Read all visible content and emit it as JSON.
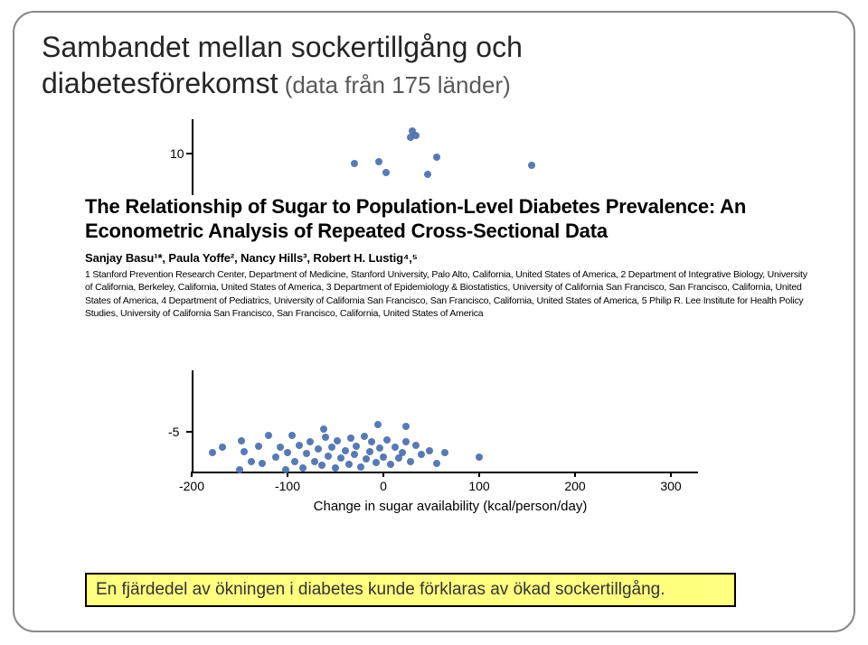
{
  "slide": {
    "title_line1": "Sambandet mellan sockertillgång och",
    "title_line2": "diabetesförekomst",
    "subtitle_suffix": " (data från 175 länder)"
  },
  "paper": {
    "title": "The Relationship of Sugar to Population-Level Diabetes Prevalence: An Econometric Analysis of Repeated Cross-Sectional Data",
    "authors": "Sanjay Basu¹*, Paula Yoffe², Nancy Hills³, Robert H. Lustig⁴,⁵",
    "affiliations": "1 Stanford Prevention Research Center, Department of Medicine, Stanford University, Palo Alto, California, United States of America, 2 Department of Integrative Biology, University of California, Berkeley, California, United States of America, 3 Department of Epidemiology & Biostatistics, University of California San Francisco, San Francisco, California, United States of America, 4 Department of Pediatrics, University of California San Francisco, San Francisco, California, United States of America, 5 Philip R. Lee Institute for Health Policy Studies, University of California San Francisco, San Francisco, California, United States of America"
  },
  "chart": {
    "type": "scatter",
    "xlabel": "Change in sugar availability (kcal/person/day)",
    "xlim": [
      -200,
      300
    ],
    "xticks": [
      -200,
      -100,
      0,
      100,
      200,
      300
    ],
    "ytick_top": 10,
    "ytick_bottom": -5,
    "point_color": "#4a6fae",
    "axis_color": "#000000",
    "background_color": "#ffffff",
    "top_points": [
      {
        "x": 30,
        "y": 12
      },
      {
        "x": 34,
        "y": 11.6
      },
      {
        "x": 28,
        "y": 11.4
      },
      {
        "x": -5,
        "y": 9.2
      },
      {
        "x": 56,
        "y": 9.6
      },
      {
        "x": -30,
        "y": 9.0
      },
      {
        "x": 155,
        "y": 8.8
      },
      {
        "x": 3,
        "y": 8.2
      },
      {
        "x": 46,
        "y": 8.0
      }
    ],
    "bottom_points": [
      {
        "x": -178,
        "y": -3.0
      },
      {
        "x": -168,
        "y": -3.5
      },
      {
        "x": -150,
        "y": -1.4
      },
      {
        "x": -148,
        "y": -4.1
      },
      {
        "x": -145,
        "y": -3.1
      },
      {
        "x": -138,
        "y": -2.2
      },
      {
        "x": -130,
        "y": -3.6
      },
      {
        "x": -126,
        "y": -2.0
      },
      {
        "x": -120,
        "y": -4.6
      },
      {
        "x": -112,
        "y": -2.6
      },
      {
        "x": -108,
        "y": -3.5
      },
      {
        "x": -102,
        "y": -1.4
      },
      {
        "x": -100,
        "y": -3.0
      },
      {
        "x": -95,
        "y": -4.6
      },
      {
        "x": -92,
        "y": -2.2
      },
      {
        "x": -88,
        "y": -3.7
      },
      {
        "x": -84,
        "y": -1.6
      },
      {
        "x": -80,
        "y": -2.9
      },
      {
        "x": -76,
        "y": -4.0
      },
      {
        "x": -72,
        "y": -2.2
      },
      {
        "x": -68,
        "y": -3.3
      },
      {
        "x": -64,
        "y": -1.8
      },
      {
        "x": -60,
        "y": -4.4
      },
      {
        "x": -58,
        "y": -2.7
      },
      {
        "x": -54,
        "y": -3.5
      },
      {
        "x": -50,
        "y": -1.6
      },
      {
        "x": -48,
        "y": -4.1
      },
      {
        "x": -44,
        "y": -2.5
      },
      {
        "x": -40,
        "y": -3.2
      },
      {
        "x": -36,
        "y": -1.9
      },
      {
        "x": -34,
        "y": -4.3
      },
      {
        "x": -30,
        "y": -2.8
      },
      {
        "x": -28,
        "y": -3.6
      },
      {
        "x": -24,
        "y": -1.7
      },
      {
        "x": -20,
        "y": -4.5
      },
      {
        "x": -18,
        "y": -2.4
      },
      {
        "x": -14,
        "y": -3.1
      },
      {
        "x": -12,
        "y": -4.0
      },
      {
        "x": -8,
        "y": -2.1
      },
      {
        "x": -4,
        "y": -3.4
      },
      {
        "x": 0,
        "y": -2.6
      },
      {
        "x": 4,
        "y": -4.2
      },
      {
        "x": 8,
        "y": -1.9
      },
      {
        "x": 12,
        "y": -3.5
      },
      {
        "x": 16,
        "y": -2.5
      },
      {
        "x": 20,
        "y": -3.0
      },
      {
        "x": 24,
        "y": -4.0
      },
      {
        "x": 28,
        "y": -2.2
      },
      {
        "x": 34,
        "y": -3.7
      },
      {
        "x": 40,
        "y": -2.8
      },
      {
        "x": 48,
        "y": -3.2
      },
      {
        "x": 56,
        "y": -2.0
      },
      {
        "x": 64,
        "y": -3.0
      },
      {
        "x": 100,
        "y": -2.6
      },
      {
        "x": -62,
        "y": -5.2
      },
      {
        "x": 24,
        "y": -5.4
      },
      {
        "x": -6,
        "y": -5.6
      }
    ]
  },
  "callout": {
    "text": "En fjärdedel av ökningen i diabetes kunde förklaras av ökad sockertillgång."
  },
  "colors": {
    "callout_bg": "#ffff80",
    "callout_border": "#000000",
    "slide_border": "#888888",
    "title_color": "#262626",
    "subtitle_color": "#595959"
  }
}
